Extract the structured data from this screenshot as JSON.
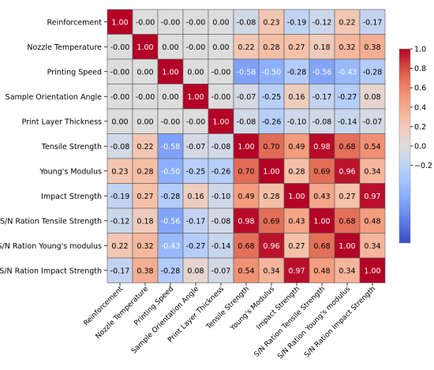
{
  "chart_data": {
    "type": "heatmap",
    "title": "",
    "xlabel": "",
    "ylabel": "",
    "colormap": "coolwarm",
    "vmin": -1.0,
    "vmax": 1.0,
    "colorbar": {
      "position": "right",
      "ticks": [
        1.0,
        0.8,
        0.6,
        0.4,
        0.2,
        0.0,
        -0.2
      ],
      "tick_labels": [
        "1.0",
        "0.8",
        "0.6",
        "0.4",
        "0.2",
        "0.0",
        "−0.2"
      ]
    },
    "grid": true,
    "cell_label_format": "0.00",
    "labels": [
      "Reinforcement",
      "Nozzle Temperature",
      "Printing Speed",
      "Sample Orientation Angle",
      "Print Layer Thickness",
      "Tensile Strength",
      "Young's Modulus",
      "Impact Strength",
      "S/N Ration Tensile Strength",
      "S/N Ration Young's modulus",
      "S/N Ration Impact Strength"
    ],
    "values": [
      [
        1.0,
        -0.0,
        -0.0,
        -0.0,
        0.0,
        -0.08,
        0.23,
        -0.19,
        -0.12,
        0.22,
        -0.17
      ],
      [
        -0.0,
        1.0,
        0.0,
        -0.0,
        0.0,
        0.22,
        0.28,
        0.27,
        0.18,
        0.32,
        0.38
      ],
      [
        -0.0,
        0.0,
        1.0,
        0.0,
        -0.0,
        -0.58,
        -0.5,
        -0.28,
        -0.56,
        -0.43,
        -0.28
      ],
      [
        -0.0,
        -0.0,
        0.0,
        1.0,
        -0.0,
        -0.07,
        -0.25,
        0.16,
        -0.17,
        -0.27,
        0.08
      ],
      [
        0.0,
        0.0,
        -0.0,
        -0.0,
        1.0,
        -0.08,
        -0.26,
        -0.1,
        -0.08,
        -0.14,
        -0.07
      ],
      [
        -0.08,
        0.22,
        -0.58,
        -0.07,
        -0.08,
        1.0,
        0.7,
        0.49,
        0.98,
        0.68,
        0.54
      ],
      [
        0.23,
        0.28,
        -0.5,
        -0.25,
        -0.26,
        0.7,
        1.0,
        0.28,
        0.69,
        0.96,
        0.34
      ],
      [
        -0.19,
        0.27,
        -0.28,
        0.16,
        -0.1,
        0.49,
        0.28,
        1.0,
        0.43,
        0.27,
        0.97
      ],
      [
        -0.12,
        0.18,
        -0.56,
        -0.17,
        -0.08,
        0.98,
        0.69,
        0.43,
        1.0,
        0.68,
        0.48
      ],
      [
        0.22,
        0.32,
        -0.43,
        -0.27,
        -0.14,
        0.68,
        0.96,
        0.27,
        0.68,
        1.0,
        0.34
      ],
      [
        -0.17,
        0.38,
        -0.28,
        0.08,
        -0.07,
        0.54,
        0.34,
        0.97,
        0.48,
        0.34,
        1.0
      ]
    ]
  }
}
